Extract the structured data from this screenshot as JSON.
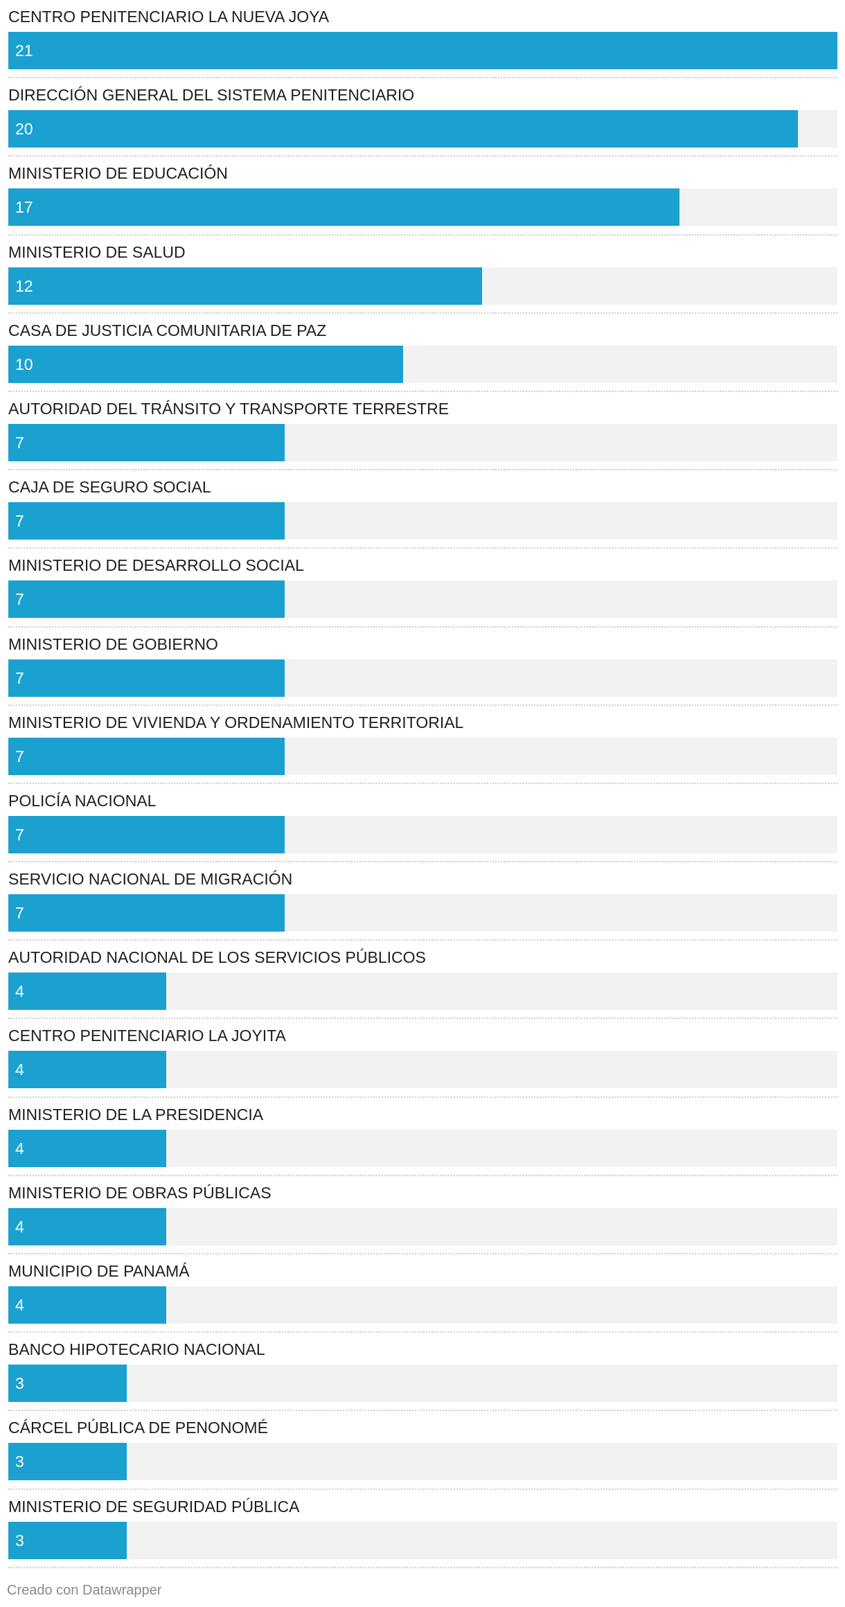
{
  "chart_data": {
    "type": "bar",
    "orientation": "horizontal",
    "categories": [
      "CENTRO PENITENCIARIO LA NUEVA JOYA",
      "DIRECCIÓN GENERAL DEL SISTEMA PENITENCIARIO",
      "MINISTERIO DE EDUCACIÓN",
      "MINISTERIO DE SALUD",
      "CASA DE JUSTICIA COMUNITARIA DE PAZ",
      "AUTORIDAD DEL TRÁNSITO Y TRANSPORTE TERRESTRE",
      "CAJA DE SEGURO SOCIAL",
      "MINISTERIO DE DESARROLLO SOCIAL",
      "MINISTERIO DE GOBIERNO",
      "MINISTERIO DE VIVIENDA Y ORDENAMIENTO TERRITORIAL",
      "POLICÍA NACIONAL",
      "SERVICIO NACIONAL DE MIGRACIÓN",
      "AUTORIDAD NACIONAL DE LOS SERVICIOS PÚBLICOS",
      "CENTRO PENITENCIARIO LA JOYITA",
      "MINISTERIO DE LA PRESIDENCIA",
      "MINISTERIO DE OBRAS PÚBLICAS",
      "MUNICIPIO DE PANAMÁ",
      "BANCO HIPOTECARIO NACIONAL",
      "CÁRCEL PÚBLICA DE PENONOMÉ",
      "MINISTERIO DE SEGURIDAD PÚBLICA"
    ],
    "values": [
      21,
      20,
      17,
      12,
      10,
      7,
      7,
      7,
      7,
      7,
      7,
      7,
      4,
      4,
      4,
      4,
      4,
      3,
      3,
      3
    ],
    "xlim": [
      0,
      21
    ],
    "bar_color": "#1aa1cf",
    "track_color": "#f2f2f2",
    "grid": false,
    "legend": "none"
  },
  "footer": {
    "credit": "Creado con Datawrapper"
  }
}
